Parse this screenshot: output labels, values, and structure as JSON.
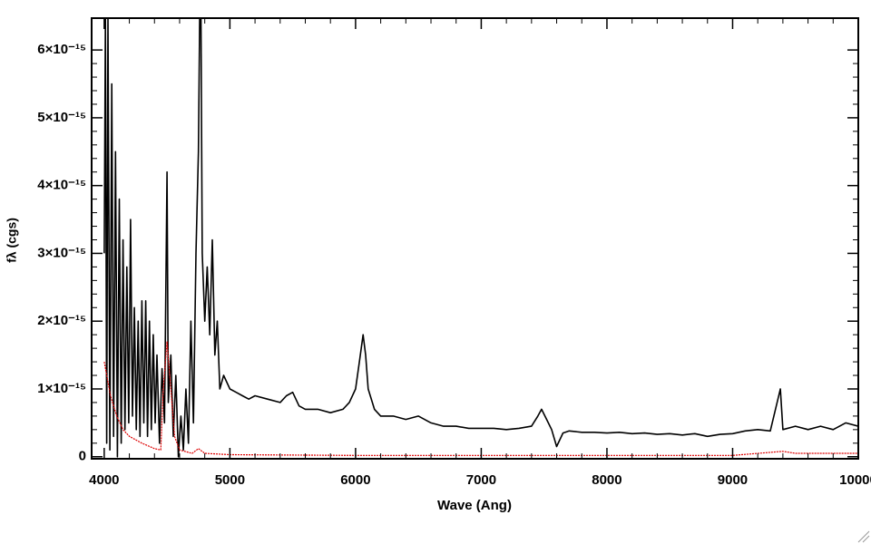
{
  "chart_data": {
    "type": "line",
    "xlabel": "Wave (Ang)",
    "ylabel": "fλ (cgs)",
    "xlim": [
      3900,
      10000
    ],
    "xticks": [
      4000,
      5000,
      6000,
      7000,
      8000,
      9000,
      10000
    ],
    "ylim": [
      -3e-17,
      6.47e-15
    ],
    "yticks": [
      {
        "value": 0,
        "label": "0"
      },
      {
        "value": 1e-15,
        "label": "1×10⁻¹⁵"
      },
      {
        "value": 2e-15,
        "label": "2×10⁻¹⁵"
      },
      {
        "value": 3e-15,
        "label": "3×10⁻¹⁵"
      },
      {
        "value": 4e-15,
        "label": "4×10⁻¹⁵"
      },
      {
        "value": 5e-15,
        "label": "5×10⁻¹⁵"
      },
      {
        "value": 6e-15,
        "label": "6×10⁻¹⁵"
      }
    ],
    "series": [
      {
        "color": "#000000",
        "x": [
          4000,
          4010,
          4020,
          4030,
          4045,
          4060,
          4075,
          4090,
          4105,
          4120,
          4135,
          4150,
          4165,
          4180,
          4195,
          4210,
          4225,
          4240,
          4255,
          4270,
          4285,
          4300,
          4315,
          4330,
          4345,
          4360,
          4375,
          4390,
          4405,
          4420,
          4440,
          4460,
          4480,
          4500,
          4510,
          4530,
          4550,
          4570,
          4590,
          4610,
          4630,
          4650,
          4670,
          4690,
          4710,
          4730,
          4750,
          4760,
          4770,
          4780,
          4800,
          4820,
          4840,
          4860,
          4880,
          4900,
          4920,
          4950,
          5000,
          5050,
          5100,
          5150,
          5200,
          5300,
          5400,
          5450,
          5500,
          5550,
          5600,
          5700,
          5800,
          5900,
          5950,
          6000,
          6030,
          6060,
          6080,
          6100,
          6150,
          6200,
          6300,
          6400,
          6500,
          6600,
          6700,
          6800,
          6900,
          7000,
          7100,
          7200,
          7300,
          7400,
          7450,
          7480,
          7520,
          7560,
          7600,
          7650,
          7700,
          7800,
          7900,
          8000,
          8100,
          8200,
          8300,
          8400,
          8500,
          8600,
          8700,
          8800,
          8900,
          9000,
          9100,
          9200,
          9300,
          9380,
          9400,
          9500,
          9600,
          9700,
          9800,
          9900,
          10000
        ],
        "values": [
          3e-15,
          6.5e-15,
          2e-16,
          6.5e-15,
          1e-16,
          5.5e-15,
          3e-16,
          4.5e-15,
          0,
          3.8e-15,
          2e-16,
          3.2e-15,
          4e-16,
          2.8e-15,
          5e-16,
          3.5e-15,
          6e-16,
          2.2e-15,
          4e-16,
          2e-15,
          3e-16,
          2.3e-15,
          5e-16,
          2.3e-15,
          3e-16,
          2e-15,
          4e-16,
          1.8e-15,
          5e-16,
          1.5e-15,
          2e-16,
          1.3e-15,
          5e-16,
          4.2e-15,
          8e-16,
          1.5e-15,
          3e-16,
          1.2e-15,
          0,
          6e-16,
          1e-16,
          1e-15,
          2e-16,
          2e-15,
          5e-16,
          3e-15,
          4.5e-15,
          6.5e-15,
          6.5e-15,
          3e-15,
          2e-15,
          2.8e-15,
          1.8e-15,
          3.2e-15,
          1.5e-15,
          2e-15,
          1e-15,
          1.2e-15,
          1e-15,
          9.5e-16,
          9e-16,
          8.5e-16,
          9e-16,
          8.5e-16,
          8e-16,
          9e-16,
          9.5e-16,
          7.5e-16,
          7e-16,
          7e-16,
          6.5e-16,
          7e-16,
          8e-16,
          1e-15,
          1.4e-15,
          1.8e-15,
          1.5e-15,
          1e-15,
          7e-16,
          6e-16,
          6e-16,
          5.5e-16,
          6e-16,
          5e-16,
          4.5e-16,
          4.5e-16,
          4.2e-16,
          4.2e-16,
          4.2e-16,
          4e-16,
          4.2e-16,
          4.5e-16,
          6e-16,
          7e-16,
          5.5e-16,
          4e-16,
          1.5e-16,
          3.5e-16,
          3.8e-16,
          3.6e-16,
          3.6e-16,
          3.5e-16,
          3.6e-16,
          3.4e-16,
          3.5e-16,
          3.3e-16,
          3.4e-16,
          3.2e-16,
          3.4e-16,
          3e-16,
          3.3e-16,
          3.4e-16,
          3.8e-16,
          4e-16,
          3.8e-16,
          1e-15,
          4e-16,
          4.5e-16,
          4e-16,
          4.5e-16,
          4e-16,
          5e-16,
          4.5e-16
        ]
      },
      {
        "color": "#dd0000",
        "x": [
          4000,
          4050,
          4100,
          4150,
          4200,
          4300,
          4400,
          4450,
          4470,
          4500,
          4530,
          4560,
          4600,
          4700,
          4750,
          4800,
          5000,
          6000,
          7000,
          8000,
          9000,
          9400,
          9500,
          10000
        ],
        "values": [
          1.4e-15,
          9e-16,
          6e-16,
          4e-16,
          3e-16,
          2e-16,
          1.2e-16,
          1e-16,
          1e-15,
          1.7e-15,
          1e-15,
          3e-16,
          1e-16,
          5e-17,
          1.2e-16,
          5e-17,
          3e-17,
          2e-17,
          2e-17,
          2e-17,
          2e-17,
          8e-17,
          5e-17,
          5e-17
        ]
      }
    ]
  }
}
